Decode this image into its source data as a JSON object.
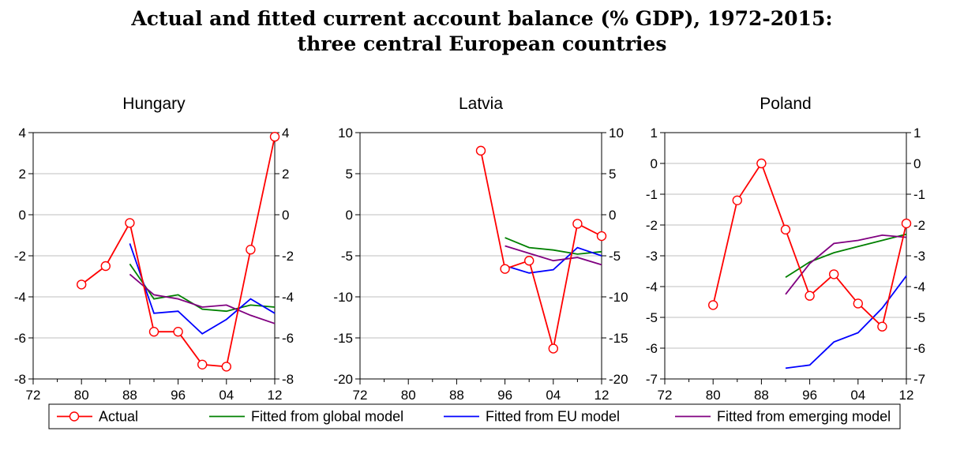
{
  "figure": {
    "title_line1": "Actual and fitted current account balance (% GDP), 1972-2015:",
    "title_line2": "three central European countries"
  },
  "legend": {
    "entries": [
      "Actual",
      "Fitted from global model",
      "Fitted from EU model",
      "Fitted from emerging model"
    ]
  },
  "colors": {
    "Actual": "#ff0000",
    "Fitted from global model": "#008000",
    "Fitted from EU model": "#0000ff",
    "Fitted from emerging model": "#800080"
  },
  "chart_data": [
    {
      "type": "line",
      "title": "Hungary",
      "xlim": [
        1972,
        2012
      ],
      "x_ticks": [
        1972,
        1980,
        1988,
        1996,
        2004,
        2012
      ],
      "x_tick_labels": [
        "72",
        "80",
        "88",
        "96",
        "04",
        "12"
      ],
      "ylim": [
        -8,
        4
      ],
      "y_ticks": [
        -8,
        -6,
        -4,
        -2,
        0,
        2,
        4
      ],
      "y_tick_labels": [
        "-8",
        "-6",
        "-4",
        "-2",
        "0",
        "2",
        "4"
      ],
      "grid": true,
      "series": [
        {
          "name": "Actual",
          "marker": "circle",
          "x": [
            1980,
            1984,
            1988,
            1992,
            1996,
            2000,
            2004,
            2008,
            2012
          ],
          "y": [
            -3.4,
            -2.5,
            -0.4,
            -5.7,
            -5.7,
            -7.3,
            -7.4,
            -1.7,
            3.8
          ]
        },
        {
          "name": "Fitted from global model",
          "x": [
            1988,
            1992,
            1996,
            2000,
            2004,
            2008,
            2012
          ],
          "y": [
            -2.4,
            -4.1,
            -3.9,
            -4.6,
            -4.7,
            -4.4,
            -4.5
          ]
        },
        {
          "name": "Fitted from EU model",
          "x": [
            1988,
            1992,
            1996,
            2000,
            2004,
            2008,
            2012
          ],
          "y": [
            -1.4,
            -4.8,
            -4.7,
            -5.8,
            -5.1,
            -4.1,
            -4.8
          ]
        },
        {
          "name": "Fitted from emerging model",
          "x": [
            1988,
            1992,
            1996,
            2000,
            2004,
            2008,
            2012
          ],
          "y": [
            -2.9,
            -3.9,
            -4.1,
            -4.5,
            -4.4,
            -4.9,
            -5.3
          ]
        }
      ]
    },
    {
      "type": "line",
      "title": "Latvia",
      "xlim": [
        1972,
        2012
      ],
      "x_ticks": [
        1972,
        1980,
        1988,
        1996,
        2004,
        2012
      ],
      "x_tick_labels": [
        "72",
        "80",
        "88",
        "96",
        "04",
        "12"
      ],
      "ylim": [
        -20,
        10
      ],
      "y_ticks": [
        -20,
        -15,
        -10,
        -5,
        0,
        5,
        10
      ],
      "y_tick_labels": [
        "-20",
        "-15",
        "-10",
        "-5",
        "0",
        "5",
        "10"
      ],
      "grid": true,
      "series": [
        {
          "name": "Actual",
          "marker": "circle",
          "x": [
            1992,
            1996,
            2000,
            2004,
            2008,
            2012
          ],
          "y": [
            7.8,
            -6.6,
            -5.6,
            -16.3,
            -1.1,
            -2.6
          ]
        },
        {
          "name": "Fitted from global model",
          "x": [
            1996,
            2000,
            2004,
            2008,
            2012
          ],
          "y": [
            -2.8,
            -4.0,
            -4.3,
            -4.8,
            -4.5
          ]
        },
        {
          "name": "Fitted from EU model",
          "x": [
            1996,
            2000,
            2004,
            2008,
            2012
          ],
          "y": [
            -6.2,
            -7.1,
            -6.7,
            -4.0,
            -5.0
          ]
        },
        {
          "name": "Fitted from emerging model",
          "x": [
            1996,
            2000,
            2004,
            2008,
            2012
          ],
          "y": [
            -3.8,
            -4.7,
            -5.6,
            -5.2,
            -6.1
          ]
        }
      ]
    },
    {
      "type": "line",
      "title": "Poland",
      "xlim": [
        1972,
        2012
      ],
      "x_ticks": [
        1972,
        1980,
        1988,
        1996,
        2004,
        2012
      ],
      "x_tick_labels": [
        "72",
        "80",
        "88",
        "96",
        "04",
        "12"
      ],
      "ylim": [
        -7,
        1
      ],
      "y_ticks": [
        -7,
        -6,
        -5,
        -4,
        -3,
        -2,
        -1,
        0,
        1
      ],
      "y_tick_labels": [
        "-7",
        "-6",
        "-5",
        "-4",
        "-3",
        "-2",
        "-1",
        "0",
        "1"
      ],
      "grid": true,
      "series": [
        {
          "name": "Actual",
          "marker": "circle",
          "x": [
            1980,
            1984,
            1988,
            1992,
            1996,
            2000,
            2004,
            2008,
            2012
          ],
          "y": [
            -4.6,
            -1.2,
            0.0,
            -2.15,
            -4.3,
            -3.6,
            -4.55,
            -5.3,
            -1.95
          ]
        },
        {
          "name": "Fitted from global model",
          "x": [
            1992,
            1996,
            2000,
            2004,
            2008,
            2012
          ],
          "y": [
            -3.7,
            -3.2,
            -2.9,
            -2.7,
            -2.5,
            -2.3
          ]
        },
        {
          "name": "Fitted from EU model",
          "x": [
            1992,
            1996,
            2000,
            2004,
            2008,
            2012
          ],
          "y": [
            -6.65,
            -6.55,
            -5.8,
            -5.5,
            -4.7,
            -3.65
          ]
        },
        {
          "name": "Fitted from emerging model",
          "x": [
            1992,
            1996,
            2000,
            2004,
            2008,
            2012
          ],
          "y": [
            -4.25,
            -3.25,
            -2.6,
            -2.5,
            -2.33,
            -2.4
          ]
        }
      ]
    }
  ]
}
